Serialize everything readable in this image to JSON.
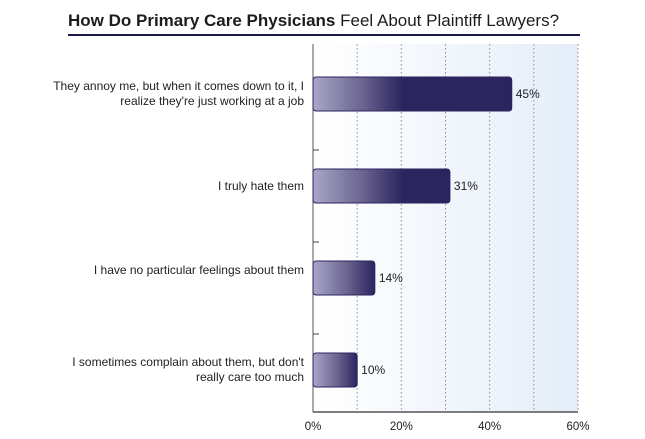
{
  "title_bold": "How Do Primary Care Physicians",
  "title_rest": "Feel About Plaintiff Lawyers?",
  "colors": {
    "bar_dark": "#2b245f",
    "bar_light": "#a9a6c8",
    "plot_bg_left": "#ffffff",
    "plot_bg_right": "#e4edf8",
    "grid": "#8f8f8f",
    "title_rule": "#1a1a4a"
  },
  "chart_data": {
    "type": "bar",
    "orientation": "horizontal",
    "categories": [
      "They annoy me, but when it comes down to it, I realize they're just working at a job",
      "I truly hate them",
      "I have no particular feelings about them",
      "I sometimes complain about them, but don't really care too much"
    ],
    "values": [
      45,
      31,
      14,
      10
    ],
    "data_labels": [
      "45%",
      "31%",
      "14%",
      "10%"
    ],
    "xlim": [
      0,
      60
    ],
    "x_ticks": [
      "0%",
      "20%",
      "40%",
      "60%"
    ],
    "grid": "vertical dotted every 10%",
    "legend": "none"
  }
}
